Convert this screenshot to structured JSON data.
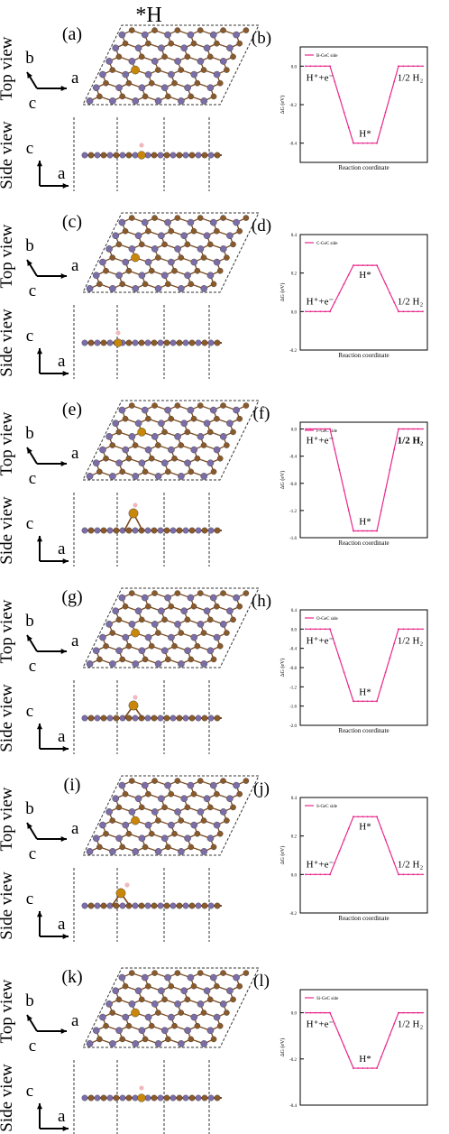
{
  "title": "*H",
  "view_labels": {
    "top": "Top view",
    "side": "Side view"
  },
  "axis_labels": {
    "a": "a",
    "b": "b",
    "c": "c"
  },
  "colors": {
    "ge": "#8b5a2b",
    "c_atom": "#7b6ea8",
    "dopant": "#c8860a",
    "h": "#f2b8c0",
    "bond": "#7a4a20",
    "line": "#e8288c"
  },
  "panels": [
    {
      "struct": "(a)",
      "chart": "(b)",
      "dopant_site": "b"
    },
    {
      "struct": "(c)",
      "chart": "(d)",
      "dopant_site": "b"
    },
    {
      "struct": "(e)",
      "chart": "(f)",
      "dopant_site": "f"
    },
    {
      "struct": "(g)",
      "chart": "(h)",
      "dopant_site": "b"
    },
    {
      "struct": "(i)",
      "chart": "(j)",
      "dopant_site": "b"
    },
    {
      "struct": "(k)",
      "chart": "(l)",
      "dopant_site": "b"
    }
  ],
  "chart_data": [
    {
      "type": "line",
      "legend": "B-GeC side",
      "xlabel": "Reaction coordinate",
      "ylabel": "ΔG (eV)",
      "ylim": [
        -0.5,
        0.1
      ],
      "yticks": [
        "0.0",
        "-0.2",
        "-0.4"
      ],
      "x": [
        0,
        1,
        2
      ],
      "y": [
        0.0,
        -0.4,
        0.0
      ],
      "labels": [
        "H⁺+e⁻",
        "H*",
        "1/2 H₂"
      ]
    },
    {
      "type": "line",
      "legend": "C-GeC side",
      "xlabel": "Reaction coordinate",
      "ylabel": "ΔG (eV)",
      "ylim": [
        -0.2,
        0.4
      ],
      "yticks": [
        "0.4",
        "0.2",
        "0.0",
        "-0.2"
      ],
      "x": [
        0,
        1,
        2
      ],
      "y": [
        0.0,
        0.24,
        0.0
      ],
      "labels": [
        "H⁺+e⁻",
        "H*",
        "1/2 H₂"
      ]
    },
    {
      "type": "line",
      "legend": "F-GeC side",
      "xlabel": "Reaction coordinate",
      "ylabel": "ΔG (eV)",
      "ylim": [
        -1.6,
        0.1
      ],
      "yticks": [
        "0.0",
        "-0.4",
        "-0.8",
        "-1.2",
        "-1.6"
      ],
      "x": [
        0,
        1,
        2
      ],
      "y": [
        0.0,
        -1.5,
        0.0
      ],
      "labels": [
        "H⁺+e⁻",
        "H*",
        "1/2 H₂"
      ]
    },
    {
      "type": "line",
      "legend": "O-GeC side",
      "xlabel": "Reaction coordinate",
      "ylabel": "ΔG (eV)",
      "ylim": [
        -2.0,
        0.4
      ],
      "yticks": [
        "0.4",
        "0.0",
        "-0.4",
        "-0.8",
        "-1.2",
        "-1.6",
        "-2.0"
      ],
      "x": [
        0,
        1,
        2
      ],
      "y": [
        0.0,
        -1.5,
        0.0
      ],
      "labels": [
        "H⁺+e⁻",
        "H*",
        "1/2 H₂"
      ]
    },
    {
      "type": "line",
      "legend": "S-GeC side",
      "xlabel": "Reaction coordinate",
      "ylabel": "ΔG (eV)",
      "ylim": [
        -0.2,
        0.4
      ],
      "yticks": [
        "0.4",
        "0.2",
        "0.0",
        "-0.2"
      ],
      "x": [
        0,
        1,
        2
      ],
      "y": [
        0.0,
        0.3,
        0.0
      ],
      "labels": [
        "H⁺+e⁻",
        "H*",
        "1/2 H₂"
      ]
    },
    {
      "type": "line",
      "legend": "Si-GeC side",
      "xlabel": "",
      "ylabel": "ΔG (eV)",
      "ylim": [
        -0.4,
        0.1
      ],
      "yticks": [
        "0.0",
        "-0.2",
        "-0.4"
      ],
      "x": [
        0,
        1,
        2
      ],
      "y": [
        0.0,
        -0.24,
        0.0
      ],
      "labels": [
        "H⁺+e⁻",
        "H*",
        "1/2 H₂"
      ]
    }
  ]
}
